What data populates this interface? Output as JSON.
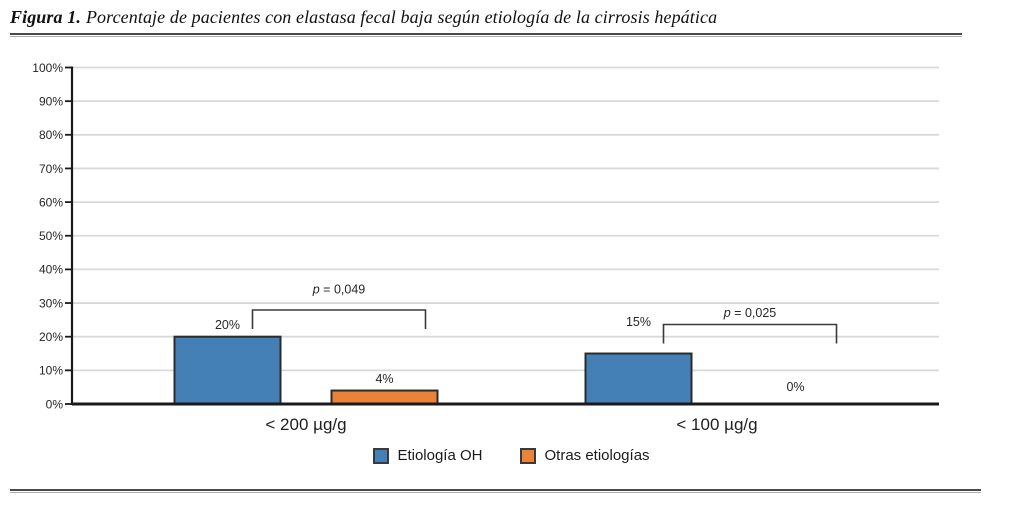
{
  "figure": {
    "label": "Figura 1.",
    "caption": "Porcentaje de pacientes con elastasa fecal baja según etiología de la cirrosis hepática"
  },
  "chart_data": {
    "type": "bar",
    "title": "Porcentaje de pacientes con elastasa fecal baja según etiología de la cirrosis hepática",
    "categories": [
      "< 200 µg/g",
      "< 100 µg/g"
    ],
    "series": [
      {
        "name": "Etiología OH",
        "color": "#4480B5",
        "values": [
          20,
          15
        ]
      },
      {
        "name": "Otras etiologías",
        "color": "#EA8338",
        "values": [
          4,
          0
        ]
      }
    ],
    "value_labels": [
      [
        "20%",
        "4%"
      ],
      [
        "15%",
        "0%"
      ]
    ],
    "p_values": [
      "p = 0,049",
      "p = 0,025"
    ],
    "y_ticks": [
      "100%",
      "90%",
      "80%",
      "70%",
      "60%",
      "50%",
      "40%",
      "30%",
      "20%",
      "10%",
      "0%"
    ],
    "xlabel": "",
    "ylabel": "",
    "ylim": [
      0,
      100
    ],
    "grid": true,
    "legend_position": "bottom",
    "grid_color": "#D9D9D9",
    "axis_color": "#1a1a1a",
    "bar_border_color": "#2b2b2b",
    "bracket_color": "#3a3a3a",
    "text_color": "#262626"
  }
}
